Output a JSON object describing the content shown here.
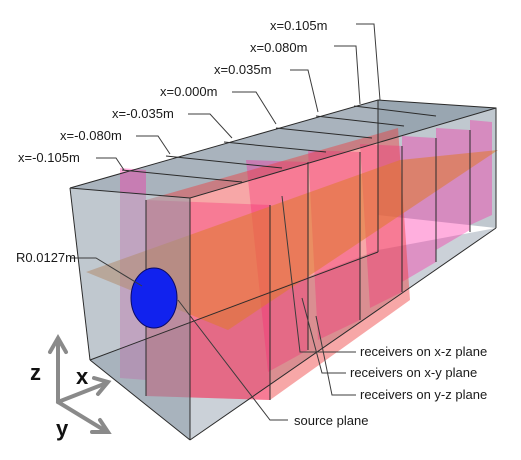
{
  "x_labels": [
    "x=0.105m",
    "x=0.080m",
    "x=0.035m",
    "x=0.000m",
    "x=-0.035m",
    "x=-0.080m",
    "x=-0.105m"
  ],
  "radius_label": "R0.0127m",
  "plane_labels": {
    "xz": "receivers on x-z plane",
    "xy": "receivers on x-y plane",
    "yz": "receivers on y-z plane",
    "source": "source plane"
  },
  "axes": {
    "z": "z",
    "x": "x",
    "y": "y"
  },
  "colors": {
    "box_face": "#8c9aa8",
    "magenta_plane": "#ff1aa0",
    "orange_plane": "#e07a2a",
    "source_disk": "#1122ee",
    "edge": "#2b2b2b",
    "leader": "#3c3c3c",
    "axis_arrow": "#8a8a8a"
  }
}
